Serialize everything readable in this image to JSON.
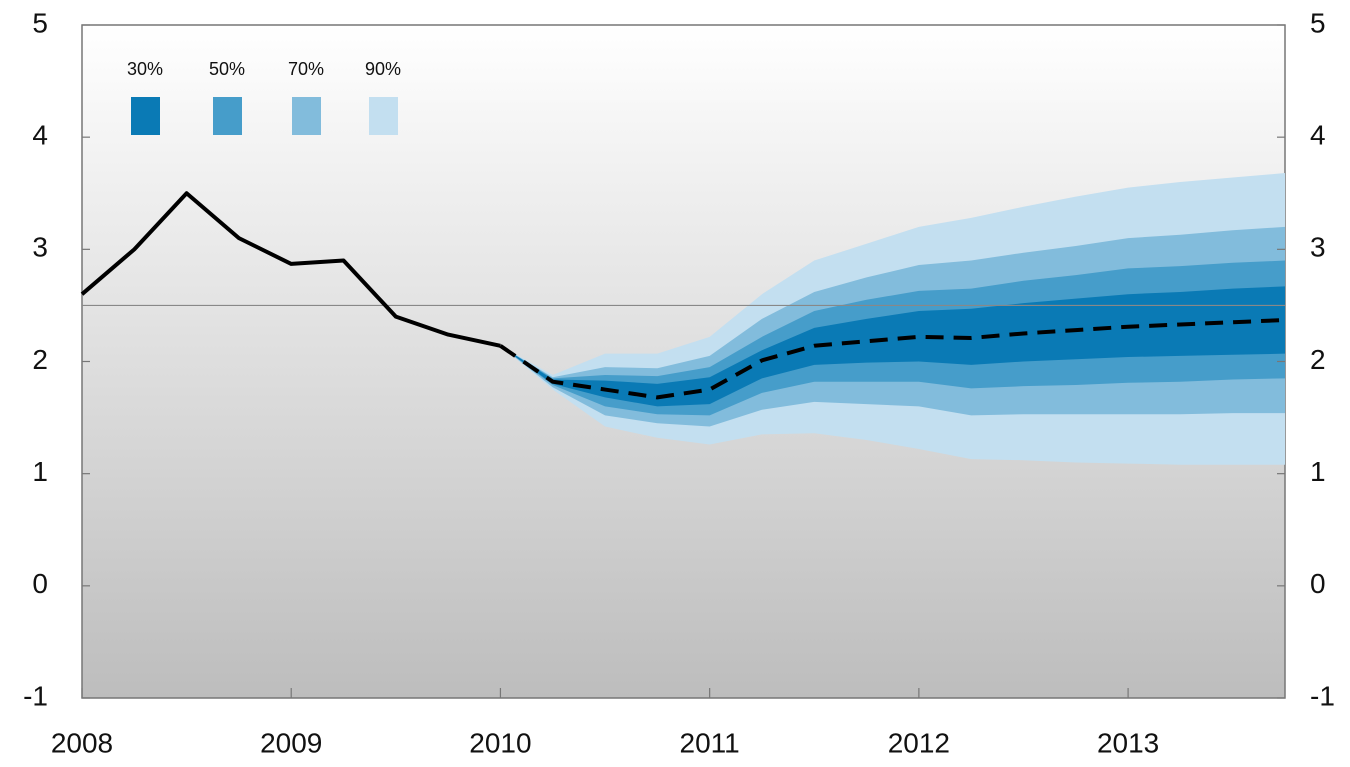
{
  "chart_data": {
    "type": "fan",
    "x": [
      2008,
      2008.25,
      2008.5,
      2008.75,
      2009,
      2009.25,
      2009.5,
      2009.75,
      2010,
      2010.25,
      2010.5,
      2010.75,
      2011,
      2011.25,
      2011.5,
      2011.75,
      2012,
      2012.25,
      2012.5,
      2012.75,
      2013,
      2013.25,
      2013.5,
      2013.75
    ],
    "xlim": [
      2008,
      2013.75
    ],
    "xticks": [
      2008,
      2009,
      2010,
      2011,
      2012,
      2013
    ],
    "ylim": [
      -1,
      5
    ],
    "yticks": [
      -1,
      0,
      1,
      2,
      3,
      4,
      5
    ],
    "reference_line": 2.5,
    "lines": [
      {
        "color": "#000000",
        "dashed": false,
        "values": [
          2.6,
          3.0,
          3.5,
          3.1,
          2.87,
          2.9,
          2.4,
          2.24,
          2.14,
          null,
          null,
          null,
          null,
          null,
          null,
          null,
          null,
          null,
          null,
          null,
          null,
          null,
          null,
          null
        ]
      },
      {
        "color": "#000000",
        "dashed": true,
        "values": [
          null,
          null,
          null,
          null,
          null,
          null,
          null,
          null,
          2.14,
          1.82,
          1.75,
          1.68,
          1.75,
          2.01,
          2.14,
          2.18,
          2.22,
          2.21,
          2.25,
          2.28,
          2.31,
          2.33,
          2.35,
          2.37
        ]
      }
    ],
    "bands": [
      {
        "name": "30%",
        "color": "#0a7ab5",
        "lower": [
          null,
          null,
          null,
          null,
          null,
          null,
          null,
          null,
          2.14,
          1.8,
          1.68,
          1.6,
          1.62,
          1.85,
          1.97,
          1.99,
          2.0,
          1.97,
          2.0,
          2.02,
          2.04,
          2.05,
          2.06,
          2.07
        ],
        "upper": [
          null,
          null,
          null,
          null,
          null,
          null,
          null,
          null,
          2.14,
          1.84,
          1.83,
          1.8,
          1.86,
          2.1,
          2.3,
          2.38,
          2.45,
          2.47,
          2.52,
          2.56,
          2.6,
          2.62,
          2.65,
          2.67
        ]
      },
      {
        "name": "50%",
        "color": "#469dca",
        "lower": [
          null,
          null,
          null,
          null,
          null,
          null,
          null,
          null,
          2.14,
          1.79,
          1.6,
          1.53,
          1.52,
          1.72,
          1.82,
          1.82,
          1.82,
          1.76,
          1.78,
          1.79,
          1.81,
          1.82,
          1.84,
          1.85
        ],
        "upper": [
          null,
          null,
          null,
          null,
          null,
          null,
          null,
          null,
          2.14,
          1.85,
          1.88,
          1.87,
          1.95,
          2.22,
          2.45,
          2.55,
          2.63,
          2.65,
          2.72,
          2.77,
          2.83,
          2.85,
          2.88,
          2.9
        ]
      },
      {
        "name": "70%",
        "color": "#82bcdc",
        "lower": [
          null,
          null,
          null,
          null,
          null,
          null,
          null,
          null,
          2.14,
          1.77,
          1.52,
          1.45,
          1.42,
          1.57,
          1.64,
          1.62,
          1.6,
          1.52,
          1.53,
          1.53,
          1.53,
          1.53,
          1.54,
          1.54
        ],
        "upper": [
          null,
          null,
          null,
          null,
          null,
          null,
          null,
          null,
          2.14,
          1.86,
          1.95,
          1.94,
          2.05,
          2.38,
          2.62,
          2.75,
          2.86,
          2.9,
          2.97,
          3.03,
          3.1,
          3.13,
          3.17,
          3.2
        ]
      },
      {
        "name": "90%",
        "color": "#c3dff0",
        "lower": [
          null,
          null,
          null,
          null,
          null,
          null,
          null,
          null,
          2.14,
          1.75,
          1.42,
          1.32,
          1.26,
          1.35,
          1.36,
          1.3,
          1.22,
          1.13,
          1.12,
          1.1,
          1.09,
          1.08,
          1.08,
          1.08
        ],
        "upper": [
          null,
          null,
          null,
          null,
          null,
          null,
          null,
          null,
          2.14,
          1.88,
          2.07,
          2.07,
          2.22,
          2.6,
          2.9,
          3.05,
          3.2,
          3.28,
          3.38,
          3.47,
          3.55,
          3.6,
          3.64,
          3.68
        ]
      }
    ]
  }
}
